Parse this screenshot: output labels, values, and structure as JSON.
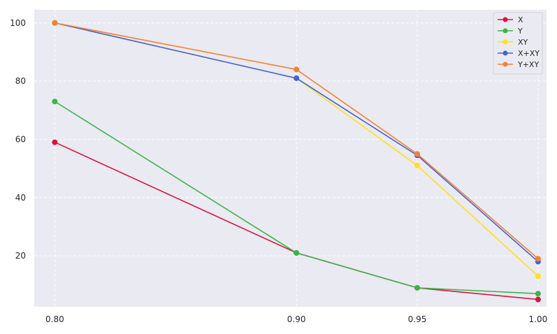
{
  "chart_data": {
    "type": "line",
    "title": "",
    "xlabel": "",
    "ylabel": "",
    "x": [
      0.8,
      0.9,
      0.95,
      1.0
    ],
    "x_tick_labels": [
      "0.80",
      "0.90",
      "0.95",
      "1.00"
    ],
    "xlim": [
      0.7915,
      1.0035
    ],
    "ylim": [
      2.5,
      104.5
    ],
    "y_ticks": [
      20,
      40,
      60,
      80,
      100
    ],
    "y_tick_labels": [
      "20",
      "40",
      "60",
      "80",
      "100"
    ],
    "grid": true,
    "grid_style": "dashed",
    "background": "#eaeaf2",
    "legend_position": "top-right",
    "series": [
      {
        "name": "X",
        "color": "#dc143c",
        "values": [
          59,
          21,
          9,
          5
        ]
      },
      {
        "name": "Y",
        "color": "#3cb44b",
        "values": [
          73,
          21,
          9,
          7
        ]
      },
      {
        "name": "XY",
        "color": "#ffe119",
        "values": [
          100,
          81,
          51,
          13
        ]
      },
      {
        "name": "X+XY",
        "color": "#4363d8",
        "values": [
          100,
          81,
          54.5,
          18
        ]
      },
      {
        "name": "Y+XY",
        "color": "#f58231",
        "values": [
          100,
          84,
          55,
          19
        ]
      }
    ]
  }
}
